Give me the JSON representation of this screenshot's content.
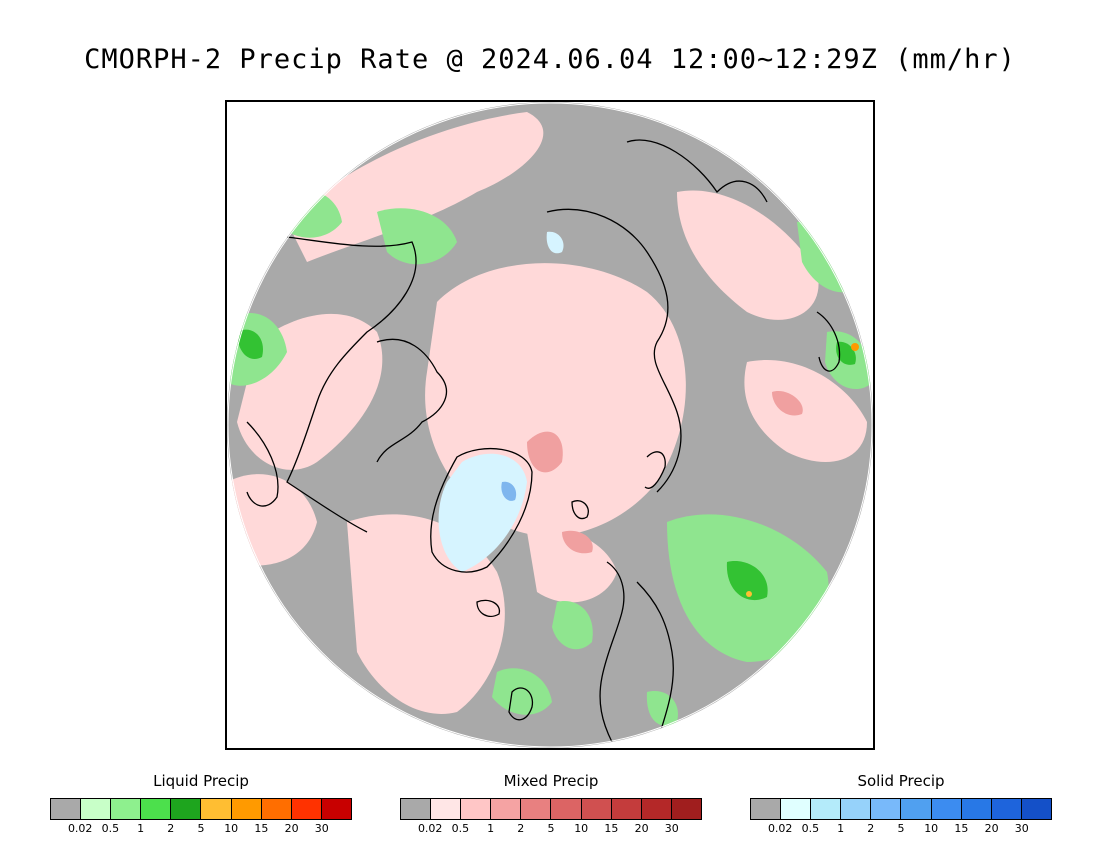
{
  "title": "CMORPH-2 Precip Rate @ 2024.06.04 12:00~12:29Z (mm/hr)",
  "map": {
    "projection": "north-polar-stereographic",
    "colors": {
      "no_precip": "#a9a9a9",
      "liquid_light": "#8fe58f",
      "liquid_medium": "#33c233",
      "mixed_light": "#ffd9d9",
      "mixed_medium": "#f0a0a0",
      "solid_light": "#d6f4ff",
      "solid_medium": "#7fb6ee",
      "coastline": "#000000"
    }
  },
  "legends": [
    {
      "title": "Liquid Precip",
      "ticks": [
        "0.02",
        "0.5",
        "1",
        "2",
        "5",
        "10",
        "15",
        "20",
        "30"
      ],
      "colors": [
        "#a9a9a9",
        "#c8ffc8",
        "#8ef08e",
        "#4ce04c",
        "#1ea51e",
        "#ffbe32",
        "#ff9a00",
        "#ff6e00",
        "#ff3200",
        "#c80000"
      ]
    },
    {
      "title": "Mixed Precip",
      "ticks": [
        "0.02",
        "0.5",
        "1",
        "2",
        "5",
        "10",
        "15",
        "20",
        "30"
      ],
      "colors": [
        "#a9a9a9",
        "#ffe6e6",
        "#ffc6c6",
        "#f5a3a3",
        "#e88080",
        "#dc6464",
        "#d05050",
        "#c43c3c",
        "#b42828",
        "#a01e1e"
      ]
    },
    {
      "title": "Solid Precip",
      "ticks": [
        "0.02",
        "0.5",
        "1",
        "2",
        "5",
        "10",
        "15",
        "20",
        "30"
      ],
      "colors": [
        "#a9a9a9",
        "#e0ffff",
        "#b4ebfa",
        "#96d2fa",
        "#78b9fa",
        "#50a0f0",
        "#3c8cf0",
        "#2878e6",
        "#1e64dc",
        "#1450c8"
      ]
    }
  ]
}
